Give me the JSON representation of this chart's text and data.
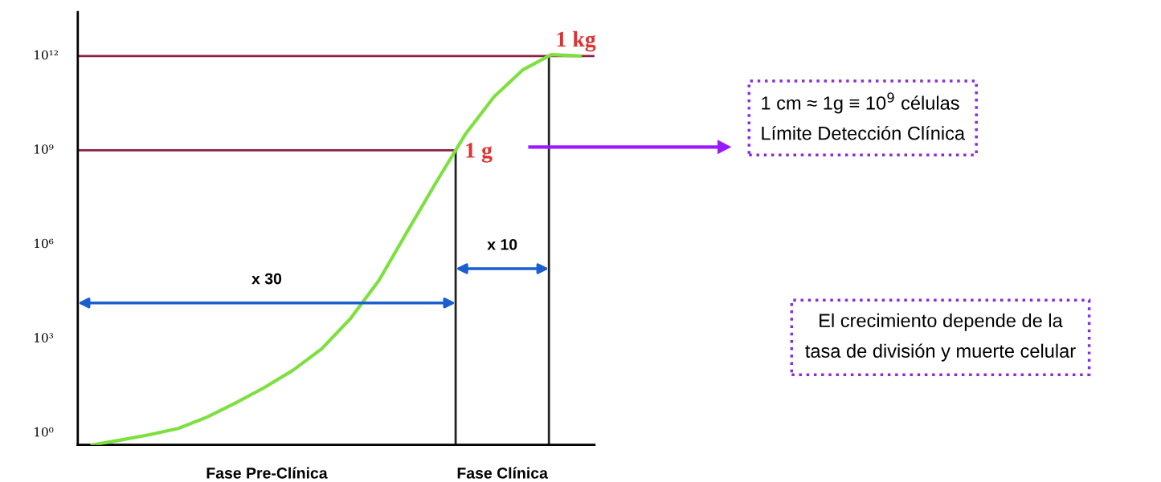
{
  "chart_data": {
    "type": "line",
    "categories": [
      null,
      null,
      null,
      null,
      null,
      null,
      null,
      null,
      null,
      null,
      null,
      null,
      null,
      null,
      null,
      null,
      null,
      null
    ],
    "ylim": [
      0.42,
      25000000000000.0
    ],
    "log": true,
    "yticks": [
      {
        "value": 1,
        "label": "10⁰"
      },
      {
        "value": 1000,
        "label": "10³"
      },
      {
        "value": 1000000,
        "label": "10⁶"
      },
      {
        "value": 1000000000,
        "label": "10⁹"
      },
      {
        "value": 1000000000000,
        "label": "10¹²"
      }
    ],
    "tick_labels": "y",
    "series": [
      {
        "color": "#7ee040",
        "values": [
          0.42,
          0.6,
          0.89,
          1.4,
          3.2,
          9.1,
          28,
          100,
          480,
          4400,
          74000,
          2800000,
          100000000,
          3200000000,
          50000000000,
          360000000000,
          1100000000000,
          1000000000000
        ]
      }
    ],
    "ref_lines": [
      {
        "axis": "y",
        "value": 1000000000,
        "color": "#8b2045"
      },
      {
        "axis": "y",
        "value": 1000000000000,
        "color": "#8b2045"
      }
    ],
    "annotations": [
      "x 30",
      "x 10",
      "1 g",
      "1 kg",
      "Fase Pre-Clínica",
      "Fase Clínica",
      "1 cm ≈ 1g ≡ 10$^{9}$ células\nLímite Detección Clínica",
      "El crecimiento depende de la\ntasa de división y muerte celular"
    ]
  }
}
